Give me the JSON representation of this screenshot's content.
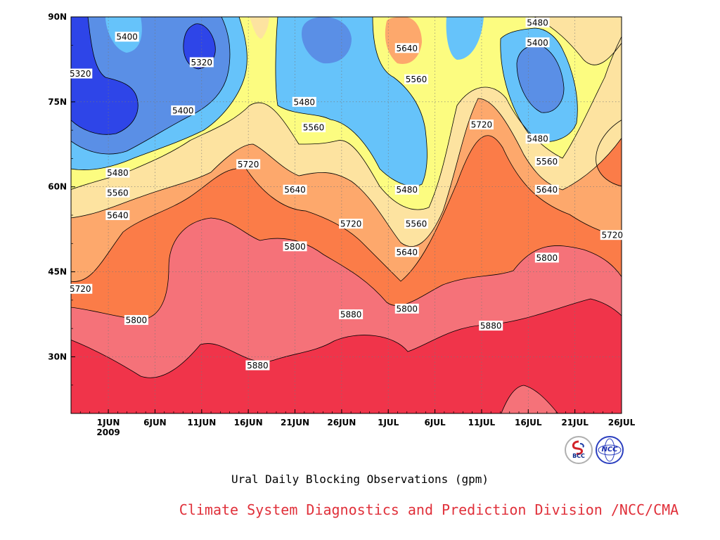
{
  "chart_data": {
    "type": "heatmap",
    "subtype": "filled-contour (time-latitude Hovmoller)",
    "title": "Ural Daily Blocking Observations (gpm)",
    "credit": "Climate System Diagnostics and Prediction Division /NCC/CMA",
    "x_axis": {
      "ticks": [
        "1JUN",
        "6JUN",
        "11JUN",
        "16JUN",
        "21JUN",
        "26JUN",
        "1JUL",
        "6JUL",
        "11JUL",
        "16JUL",
        "21JUL",
        "26JUL"
      ],
      "year_label": "2009",
      "range": [
        "2009-05-28",
        "2009-07-26"
      ]
    },
    "y_axis": {
      "ticks": [
        "30N",
        "45N",
        "60N",
        "75N",
        "90N"
      ],
      "tick_values": [
        30,
        45,
        60,
        75,
        90
      ],
      "range": [
        20,
        90
      ]
    },
    "contour_levels": [
      5320,
      5400,
      5480,
      5560,
      5640,
      5720,
      5800,
      5880
    ],
    "colors": {
      "below_5320": "#2e45e8",
      "5320_5400": "#5a8fe6",
      "5400_5480": "#66c3fa",
      "5480_5560": "#fcfc80",
      "5560_5640": "#fde3a0",
      "5640_5720": "#fda86c",
      "5720_5800": "#fb7c48",
      "5800_5880": "#f57279",
      "above_5880": "#f0344a"
    },
    "grid": "dotted",
    "legend": "none",
    "contour_labels": [
      {
        "text": "5400",
        "date": "2009-06-03",
        "lat": 86.5
      },
      {
        "text": "5320",
        "date": "2009-05-29",
        "lat": 80
      },
      {
        "text": "5320",
        "date": "2009-06-11",
        "lat": 82
      },
      {
        "text": "5400",
        "date": "2009-06-09",
        "lat": 73.5
      },
      {
        "text": "5480",
        "date": "2009-06-02",
        "lat": 62.5
      },
      {
        "text": "5560",
        "date": "2009-06-02",
        "lat": 59
      },
      {
        "text": "5640",
        "date": "2009-06-02",
        "lat": 55
      },
      {
        "text": "5720",
        "date": "2009-05-29",
        "lat": 42
      },
      {
        "text": "5800",
        "date": "2009-06-04",
        "lat": 36.5
      },
      {
        "text": "5720",
        "date": "2009-06-16",
        "lat": 64
      },
      {
        "text": "5640",
        "date": "2009-06-21",
        "lat": 59.5
      },
      {
        "text": "5800",
        "date": "2009-06-21",
        "lat": 49.5
      },
      {
        "text": "5880",
        "date": "2009-06-17",
        "lat": 28.5
      },
      {
        "text": "5480",
        "date": "2009-06-22",
        "lat": 75
      },
      {
        "text": "5560",
        "date": "2009-06-23",
        "lat": 70.5
      },
      {
        "text": "5720",
        "date": "2009-06-27",
        "lat": 53.5
      },
      {
        "text": "5880",
        "date": "2009-06-27",
        "lat": 37.5
      },
      {
        "text": "5640",
        "date": "2009-07-03",
        "lat": 84.5
      },
      {
        "text": "5560",
        "date": "2009-07-04",
        "lat": 79
      },
      {
        "text": "5480",
        "date": "2009-07-03",
        "lat": 59.5
      },
      {
        "text": "5560",
        "date": "2009-07-04",
        "lat": 53.5
      },
      {
        "text": "5640",
        "date": "2009-07-03",
        "lat": 48.5
      },
      {
        "text": "5800",
        "date": "2009-07-03",
        "lat": 38.5
      },
      {
        "text": "5720",
        "date": "2009-07-11",
        "lat": 71
      },
      {
        "text": "5880",
        "date": "2009-07-12",
        "lat": 35.5
      },
      {
        "text": "5480",
        "date": "2009-07-17",
        "lat": 89
      },
      {
        "text": "5400",
        "date": "2009-07-17",
        "lat": 85.5
      },
      {
        "text": "5480",
        "date": "2009-07-17",
        "lat": 68.5
      },
      {
        "text": "5560",
        "date": "2009-07-18",
        "lat": 64.5
      },
      {
        "text": "5640",
        "date": "2009-07-18",
        "lat": 59.5
      },
      {
        "text": "5800",
        "date": "2009-07-18",
        "lat": 47.5
      },
      {
        "text": "5720",
        "date": "2009-07-25",
        "lat": 51.5
      }
    ]
  },
  "logos": {
    "left_text": "BCC",
    "right_text": "NCC"
  }
}
